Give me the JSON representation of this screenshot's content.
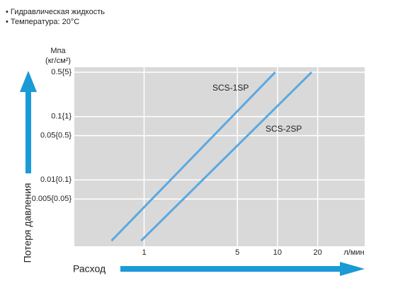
{
  "chart_data": {
    "type": "line",
    "notes": [
      "• Гидравлическая жидкость",
      "• Температура: 20°C"
    ],
    "y_label": "Потеря давления",
    "x_label": "Расход",
    "y_unit": [
      "Мпа",
      "(кг/см²)"
    ],
    "x_unit": "л/мин",
    "xscale": "log",
    "yscale": "log",
    "grid": true,
    "xlim": [
      0.3,
      45
    ],
    "ylim": [
      0.0009,
      0.6
    ],
    "xticks": [
      1,
      5,
      10,
      20
    ],
    "yticks": [
      {
        "value": 0.5,
        "label": "0.5{5}"
      },
      {
        "value": 0.1,
        "label": "0.1{1}"
      },
      {
        "value": 0.05,
        "label": "0.05{0.5}"
      },
      {
        "value": 0.01,
        "label": "0.01{0.1}"
      },
      {
        "value": 0.005,
        "label": "0.005{0.05}"
      }
    ],
    "series": [
      {
        "name": "SCS-1SP",
        "color": "#5ba8e0",
        "x": [
          0.57,
          9.6
        ],
        "values": [
          0.0011,
          0.5
        ]
      },
      {
        "name": "SCS-2SP",
        "color": "#5ba8e0",
        "x": [
          0.95,
          18
        ],
        "values": [
          0.0011,
          0.5
        ]
      }
    ]
  }
}
